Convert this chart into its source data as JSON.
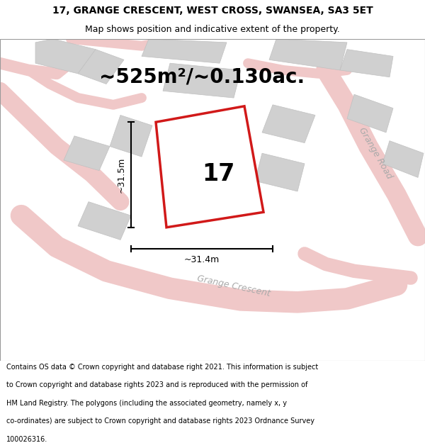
{
  "title": "17, GRANGE CRESCENT, WEST CROSS, SWANSEA, SA3 5ET",
  "subtitle": "Map shows position and indicative extent of the property.",
  "area_label": "~525m²/~0.130ac.",
  "number_label": "17",
  "width_label": "~31.4m",
  "height_label": "~31.5m",
  "road_label_crescent": "Grange Crescent",
  "road_label_road": "Grange Road",
  "footer_lines": [
    "Contains OS data © Crown copyright and database right 2021. This information is subject",
    "to Crown copyright and database rights 2023 and is reproduced with the permission of",
    "HM Land Registry. The polygons (including the associated geometry, namely x, y",
    "co-ordinates) are subject to Crown copyright and database rights 2023 Ordnance Survey",
    "100026316."
  ],
  "bg_color": "#e8e8e8",
  "plot_fill": "#ffffff",
  "plot_edge": "#cc0000",
  "road_color": "#f0c8c8",
  "building_color": "#d0d0d0",
  "building_edge": "#c0c0c0",
  "title_fontsize": 10,
  "subtitle_fontsize": 9,
  "area_fontsize": 20,
  "number_fontsize": 24,
  "dim_fontsize": 9,
  "road_fontsize": 9,
  "footer_fontsize": 7
}
